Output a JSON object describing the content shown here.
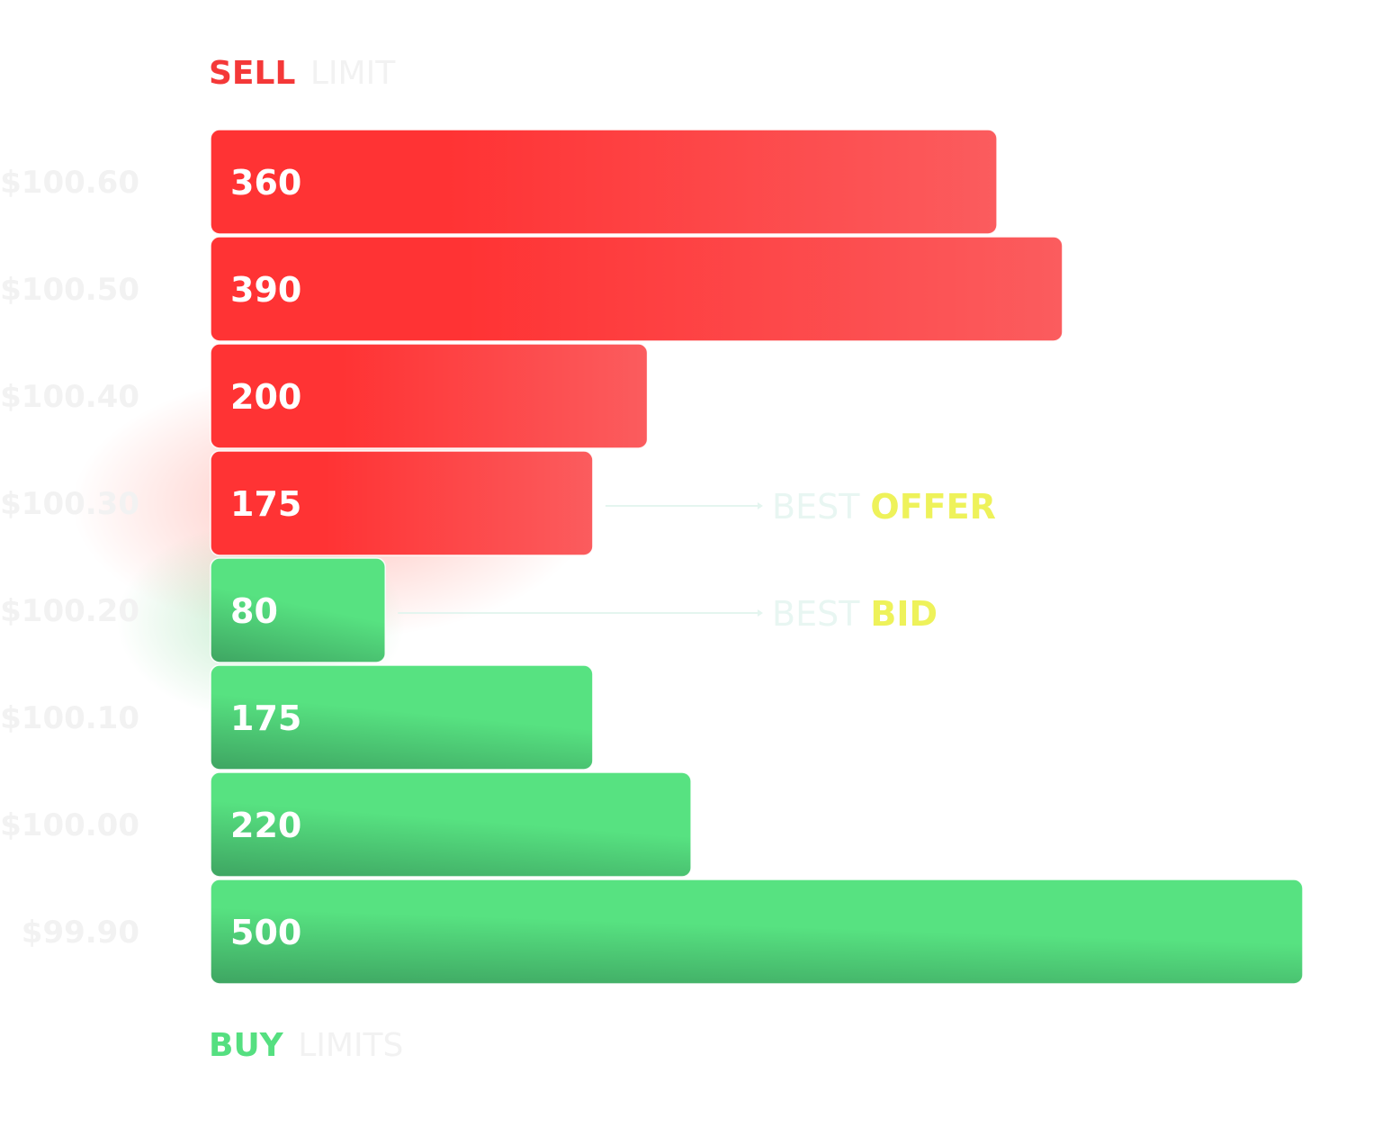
{
  "chart_data": {
    "type": "bar",
    "orientation": "horizontal",
    "sell_label": "SELL",
    "sell_sub_label": "LIMIT",
    "buy_label": "BUY",
    "buy_sub_label": "LIMITS",
    "categories": [
      "$100.60",
      "$100.50",
      "$100.40",
      "$100.30",
      "$100.20",
      "$100.10",
      "$100.00",
      "$99.90"
    ],
    "series": [
      {
        "name": "SELL",
        "values": [
          360,
          390,
          200,
          175,
          null,
          null,
          null,
          null
        ]
      },
      {
        "name": "BUY",
        "values": [
          null,
          null,
          null,
          null,
          80,
          175,
          220,
          500
        ]
      }
    ],
    "values": [
      360,
      390,
      200,
      175,
      80,
      175,
      220,
      500
    ],
    "sides": [
      "sell",
      "sell",
      "sell",
      "sell",
      "buy",
      "buy",
      "buy",
      "buy"
    ],
    "xlim": [
      0,
      500
    ],
    "grid": false,
    "annotations": [
      {
        "target_index": 3,
        "prefix": "BEST",
        "highlight": "OFFER"
      },
      {
        "target_index": 4,
        "prefix": "BEST",
        "highlight": "BID"
      }
    ],
    "colors": {
      "sell_start": "#ff3334",
      "sell_end": "#fb5c5e",
      "buy_start": "#3ea562",
      "buy_end": "#57e281",
      "sell_heading": "#f43838",
      "buy_heading": "#55df80",
      "highlight": "#eef25a",
      "dim_text": "#e8f6f2",
      "price_text": "#f2f2f2"
    }
  }
}
